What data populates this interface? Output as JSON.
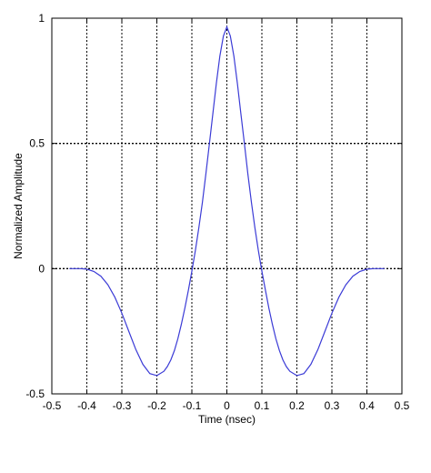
{
  "chart_data": {
    "type": "line",
    "title": "",
    "xlabel": "Time (nsec)",
    "ylabel": "Normalized Amplitude",
    "xlim": [
      -0.5,
      0.5
    ],
    "ylim": [
      -0.5,
      1
    ],
    "xticks": [
      -0.5,
      -0.4,
      -0.3,
      -0.2,
      -0.1,
      0,
      0.1,
      0.2,
      0.3,
      0.4,
      0.5
    ],
    "xtick_labels": [
      "-0.5",
      "-0.4",
      "-0.3",
      "-0.2",
      "-0.1",
      "0",
      "0.1",
      "0.2",
      "0.3",
      "0.4",
      "0.5"
    ],
    "yticks": [
      -0.5,
      0,
      0.5,
      1
    ],
    "ytick_labels": [
      "-0.5",
      "0",
      "0.5",
      "1"
    ],
    "grid": true,
    "colors": {
      "line": "#3b3bd6",
      "grid": "#000000",
      "axes": "#000000"
    },
    "series": [
      {
        "x": [
          -0.45,
          -0.42,
          -0.4,
          -0.38,
          -0.36,
          -0.34,
          -0.32,
          -0.3,
          -0.28,
          -0.26,
          -0.24,
          -0.22,
          -0.2,
          -0.18,
          -0.17,
          -0.16,
          -0.15,
          -0.14,
          -0.13,
          -0.12,
          -0.11,
          -0.1,
          -0.09,
          -0.08,
          -0.07,
          -0.06,
          -0.05,
          -0.04,
          -0.03,
          -0.02,
          -0.01,
          0.0,
          0.01,
          0.02,
          0.03,
          0.04,
          0.05,
          0.06,
          0.07,
          0.08,
          0.09,
          0.1,
          0.11,
          0.12,
          0.13,
          0.14,
          0.15,
          0.16,
          0.17,
          0.18,
          0.2,
          0.22,
          0.24,
          0.26,
          0.28,
          0.3,
          0.32,
          0.34,
          0.36,
          0.38,
          0.4,
          0.42,
          0.45
        ],
        "y": [
          0.0,
          0.0,
          -0.002,
          -0.011,
          -0.03,
          -0.064,
          -0.114,
          -0.178,
          -0.251,
          -0.323,
          -0.382,
          -0.419,
          -0.427,
          -0.41,
          -0.391,
          -0.364,
          -0.327,
          -0.28,
          -0.223,
          -0.158,
          -0.086,
          -0.01,
          0.073,
          0.164,
          0.265,
          0.378,
          0.499,
          0.619,
          0.739,
          0.849,
          0.929,
          0.965,
          0.929,
          0.849,
          0.739,
          0.619,
          0.499,
          0.378,
          0.265,
          0.164,
          0.073,
          -0.01,
          -0.086,
          -0.158,
          -0.223,
          -0.28,
          -0.327,
          -0.364,
          -0.391,
          -0.41,
          -0.427,
          -0.419,
          -0.382,
          -0.323,
          -0.251,
          -0.178,
          -0.114,
          -0.064,
          -0.03,
          -0.011,
          -0.002,
          0.0,
          0.0
        ]
      }
    ]
  }
}
